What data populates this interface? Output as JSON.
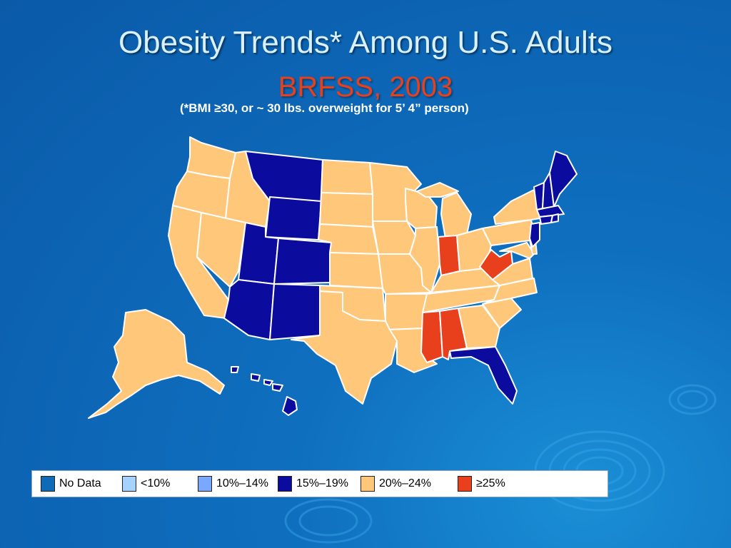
{
  "slide": {
    "title": "Obesity Trends* Among U.S. Adults",
    "subtitle": "BRFSS, 2003",
    "note": "(*BMI ≥30, or ~ 30 lbs. overweight for 5’ 4” person)"
  },
  "colors": {
    "title": "#d9f0ff",
    "subtitle": "#e8401c",
    "no_data": "#0f6bb5",
    "lt10": "#a6d2ff",
    "10_14": "#7aa8ff",
    "15_19": "#0b0b9e",
    "20_24": "#ffc779",
    "ge25": "#e8401c"
  },
  "legend": [
    {
      "key": "no_data",
      "label": "No Data"
    },
    {
      "key": "lt10",
      "label": "<10%"
    },
    {
      "key": "10_14",
      "label": "10%–14%"
    },
    {
      "key": "15_19",
      "label": "15%–19%"
    },
    {
      "key": "20_24",
      "label": "20%–24%"
    },
    {
      "key": "ge25",
      "label": "≥25%"
    }
  ],
  "state_categories": {
    "montana": "15_19",
    "wyoming": "15_19",
    "utah": "15_19",
    "colorado": "15_19",
    "arizona": "15_19",
    "new-mexico": "15_19",
    "florida": "15_19",
    "hawaii": "15_19",
    "new-jersey": "15_19",
    "vermont": "15_19",
    "new-hampshire": "15_19",
    "maine": "15_19",
    "massachusetts": "15_19",
    "connecticut": "15_19",
    "rhode-island": "15_19",
    "mississippi": "ge25",
    "alabama": "ge25",
    "indiana": "ge25",
    "west-virginia": "ge25",
    "default": "20_24"
  }
}
